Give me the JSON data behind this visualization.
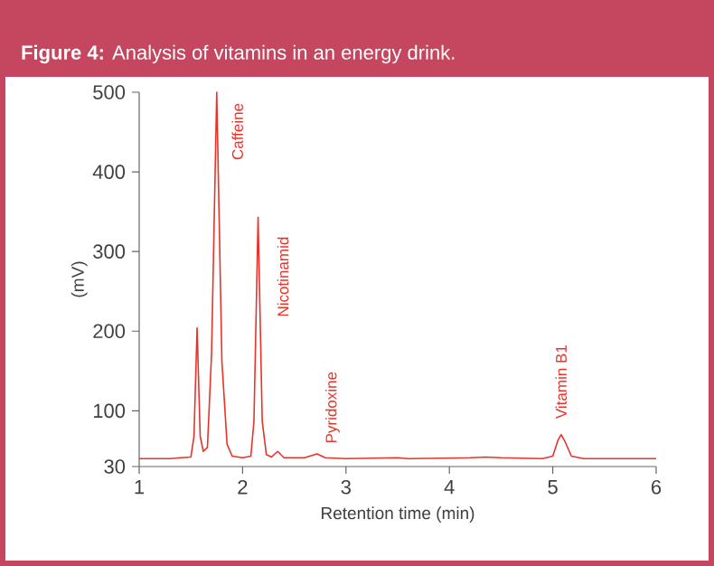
{
  "chart_data": {
    "type": "line",
    "title": "**Figure 4:** Analysis of vitamins in an energy drink.",
    "xlabel": "Retention time (min)",
    "ylabel": "(mV)",
    "x": [
      1.0,
      1.3,
      1.4,
      1.5,
      1.53,
      1.56,
      1.59,
      1.62,
      1.66,
      1.7,
      1.75,
      1.8,
      1.85,
      1.9,
      2.0,
      2.08,
      2.11,
      2.15,
      2.19,
      2.23,
      2.28,
      2.34,
      2.4,
      2.6,
      2.72,
      2.8,
      3.0,
      3.5,
      3.6,
      4.2,
      4.35,
      4.5,
      4.9,
      5.0,
      5.05,
      5.08,
      5.12,
      5.18,
      5.3,
      6.0
    ],
    "series": [
      {
        "color": "#e8332a",
        "values": [
          40,
          40,
          41,
          42,
          68,
          204,
          68,
          49,
          54,
          172,
          500,
          162,
          58,
          43,
          41,
          43,
          87,
          343,
          87,
          45,
          42,
          49,
          41,
          41,
          46,
          41,
          40,
          41,
          40,
          41,
          42,
          41,
          40,
          43,
          63,
          70,
          61,
          43,
          40,
          40
        ]
      }
    ],
    "xlim": [
      1,
      6
    ],
    "xticks": [
      1,
      2,
      3,
      4,
      5,
      6
    ],
    "ylim": [
      30,
      500
    ],
    "yticks": [
      30,
      100,
      200,
      300,
      400,
      500
    ],
    "annotations": [
      "Caffeine",
      "Nicotinamid",
      "Pyridoxine",
      "Vitamin B1"
    ]
  }
}
